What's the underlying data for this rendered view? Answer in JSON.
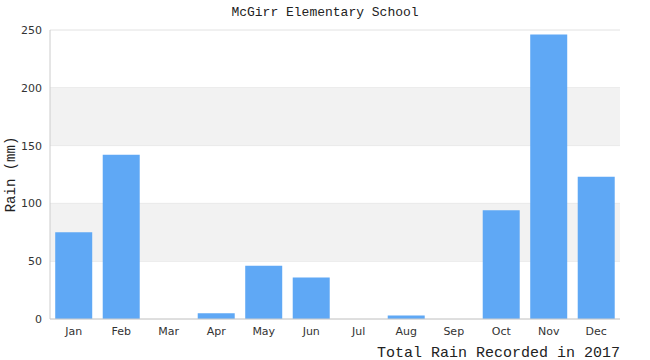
{
  "chart_data": {
    "type": "bar",
    "title": "McGirr Elementary School",
    "x_label": "Total Rain Recorded in 2017",
    "y_label": "Rain (mm)",
    "categories": [
      "Jan",
      "Feb",
      "Mar",
      "Apr",
      "May",
      "Jun",
      "Jul",
      "Aug",
      "Sep",
      "Oct",
      "Nov",
      "Dec"
    ],
    "values": [
      75,
      142,
      0,
      5,
      46,
      36,
      0,
      3,
      0,
      94,
      246,
      123
    ],
    "color": "#5fa8f5",
    "ylim": [
      0,
      250
    ],
    "yticks": [
      0,
      50,
      100,
      150,
      200,
      250
    ],
    "grid": true
  }
}
